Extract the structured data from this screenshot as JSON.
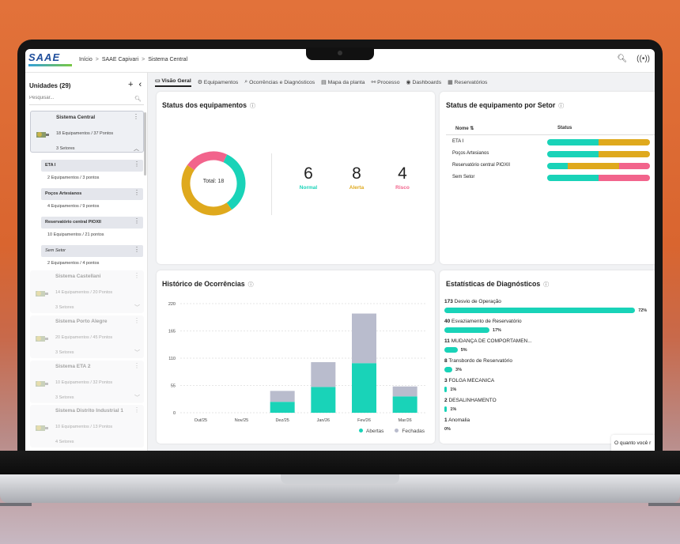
{
  "header": {
    "logo_text": "SAAE",
    "breadcrumb": [
      "Início",
      "SAAE Capivari",
      "Sistema Central"
    ],
    "icons": [
      "zoom-icon",
      "signal-icon"
    ]
  },
  "sidebar": {
    "title": "Unidades (29)",
    "search_placeholder": "Pesquisar...",
    "units": [
      {
        "name": "Sistema Central",
        "equip": "18 Equipamentos / 37 Pontos",
        "sectors": "3 Setores",
        "expanded": true
      },
      {
        "name": "Sistema Castellani",
        "equip": "14 Equipamentos / 20 Pontos",
        "sectors": "3 Setores"
      },
      {
        "name": "Sistema Porto Alegre",
        "equip": "20 Equipamentos / 45 Pontos",
        "sectors": "3 Setores"
      },
      {
        "name": "Sistema ETA 2",
        "equip": "10 Equipamentos / 32 Pontos",
        "sectors": "3 Setores"
      },
      {
        "name": "Sistema Distrito Industrial 1",
        "equip": "10 Equipamentos / 13 Pontos",
        "sectors": "4 Setores"
      }
    ],
    "sectors": [
      {
        "name": "ETA I",
        "equip": "2 Equipamentos / 3 pontos"
      },
      {
        "name": "Poços Artesianos",
        "equip": "4 Equipamentos / 9 pontos"
      },
      {
        "name": "Reservatório central PIOXII",
        "equip": "10 Equipamentos / 21 pontos"
      },
      {
        "name": "Sem Setor",
        "equip": "2 Equipamentos / 4 pontos"
      }
    ]
  },
  "tabs": [
    {
      "label": "Visão Geral",
      "icon": "monitor-icon",
      "active": true
    },
    {
      "label": "Equipamentos",
      "icon": "gear-icon"
    },
    {
      "label": "Ocorrências e Diagnósticos",
      "icon": "search-icon"
    },
    {
      "label": "Mapa da planta",
      "icon": "map-icon"
    },
    {
      "label": "Processo",
      "icon": "process-icon"
    },
    {
      "label": "Dashboards",
      "icon": "eye-icon"
    },
    {
      "label": "Reservatórios",
      "icon": "tank-icon"
    }
  ],
  "status": {
    "title": "Status dos equipamentos",
    "total_label": "Total: 18",
    "normal": {
      "value": "6",
      "label": "Normal"
    },
    "alert": {
      "value": "8",
      "label": "Alerta"
    },
    "risk": {
      "value": "4",
      "label": "Risco"
    }
  },
  "sector_status": {
    "title": "Status de equipamento por Setor",
    "col_name": "Nome",
    "col_status": "Status",
    "rows": [
      {
        "name": "ETA I",
        "normal": 0.5,
        "alert": 0.5,
        "risk": 0
      },
      {
        "name": "Poços Artesianos",
        "normal": 0.5,
        "alert": 0.5,
        "risk": 0
      },
      {
        "name": "Reservatório central PIOXII",
        "normal": 0.2,
        "alert": 0.5,
        "risk": 0.3
      },
      {
        "name": "Sem Setor",
        "normal": 0.5,
        "alert": 0,
        "risk": 0.5
      }
    ]
  },
  "history": {
    "title": "Histórico de Ocorrências",
    "legend_open": "Abertas",
    "legend_closed": "Fechadas"
  },
  "chart_data": {
    "type": "bar",
    "categories": [
      "Out/25",
      "Nov/25",
      "Dez/25",
      "Jan/26",
      "Fev/26",
      "Mar/26"
    ],
    "series": [
      {
        "name": "Abertas",
        "values": [
          0,
          0,
          22,
          52,
          100,
          33
        ]
      },
      {
        "name": "Fechadas",
        "values": [
          0,
          0,
          22,
          50,
          100,
          20
        ]
      }
    ],
    "yticks": [
      0,
      55,
      110,
      165,
      220
    ],
    "ylim": [
      0,
      220
    ],
    "stacked": true
  },
  "diagnostics": {
    "title": "Estatísticas de Diagnósticos",
    "items": [
      {
        "count": "173",
        "label": "Desvio de Operação",
        "pct": "72%",
        "frac": 0.72
      },
      {
        "count": "40",
        "label": "Esvaziamento de Reservatório",
        "pct": "17%",
        "frac": 0.17
      },
      {
        "count": "11",
        "label": "MUDANÇA DE COMPORTAMEN...",
        "pct": "5%",
        "frac": 0.05
      },
      {
        "count": "8",
        "label": "Transbordo de Reservatório",
        "pct": "3%",
        "frac": 0.03
      },
      {
        "count": "3",
        "label": "FOLGA MECANICA",
        "pct": "1%",
        "frac": 0.01
      },
      {
        "count": "2",
        "label": "DESALINHAMENTO",
        "pct": "1%",
        "frac": 0.01
      },
      {
        "count": "1",
        "label": "Anomalia",
        "pct": "0%",
        "frac": 0.0
      }
    ]
  },
  "toast": "O quanto você r",
  "colors": {
    "normal": "#19d3b8",
    "alert": "#dfa91d",
    "risk": "#f2648c",
    "closed": "#b9bccd"
  }
}
